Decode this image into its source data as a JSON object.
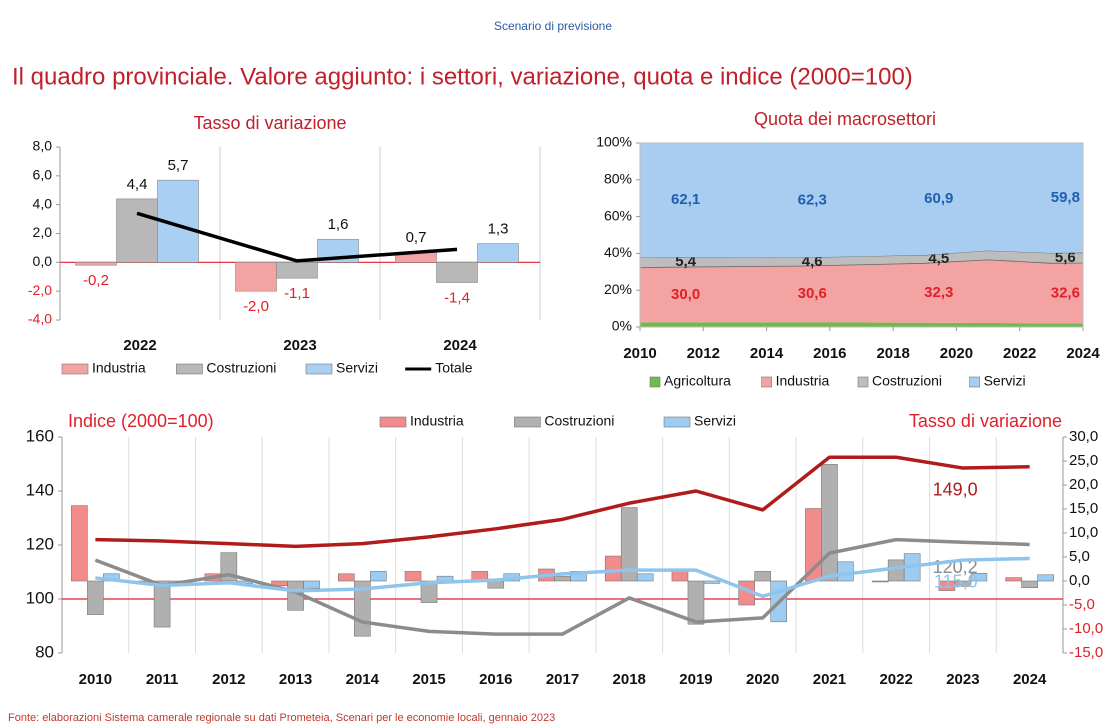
{
  "header": "Scenario di previsione",
  "title": "Il quadro provinciale. Valore aggiunto: i settori, variazione, quota e indice (2000=100)",
  "source": "Fonte: elaborazioni Sistema camerale regionale su dati Prometeia, Scenari per le economie locali, gennaio 2023",
  "chart_data": [
    {
      "type": "bar",
      "title": "Tasso di variazione",
      "categories": [
        "2022",
        "2023",
        "2024"
      ],
      "series": [
        {
          "name": "Industria",
          "color": "#f4a3a3",
          "values": [
            -0.2,
            -2.0,
            0.7
          ],
          "value_labels": [
            "-0,2",
            "-2,0",
            "0,7"
          ]
        },
        {
          "name": "Costruzioni",
          "color": "#b8b8b8",
          "values": [
            4.4,
            -1.1,
            -1.4
          ],
          "value_labels": [
            "4,4",
            "-1,1",
            "-1,4"
          ]
        },
        {
          "name": "Servizi",
          "color": "#a9d0f2",
          "values": [
            5.7,
            1.6,
            1.3
          ],
          "value_labels": [
            "5,7",
            "1,6",
            "1,3"
          ]
        },
        {
          "name": "Totale",
          "type": "line",
          "color": "#000000",
          "values": [
            3.4,
            0.1,
            0.9
          ]
        }
      ],
      "ylim": [
        -4,
        8
      ],
      "yticks": [
        {
          "value": -4,
          "label": "-4,0"
        },
        {
          "value": -2,
          "label": "-2,0"
        },
        {
          "value": 0,
          "label": "0,0"
        },
        {
          "value": 2,
          "label": "2,0"
        },
        {
          "value": 4,
          "label": "4,0"
        },
        {
          "value": 6,
          "label": "6,0"
        },
        {
          "value": 8,
          "label": "8,0"
        }
      ]
    },
    {
      "type": "area",
      "stacked": true,
      "title": "Quota dei macrosettori",
      "x": [
        2010,
        2011,
        2015,
        2019,
        2021,
        2023,
        2024
      ],
      "series": [
        {
          "name": "Agricoltura",
          "color": "#6dbb4c",
          "values": [
            2.5,
            2.5,
            2.5,
            2.3,
            2.2,
            2.0,
            2.0
          ]
        },
        {
          "name": "Industria",
          "color": "#f4a3a3",
          "label_color": "#e0202a",
          "values": [
            29.7,
            30.0,
            30.6,
            32.3,
            34.3,
            32.6,
            32.8
          ],
          "value_labels": [
            null,
            "30,0",
            "30,6",
            "32,3",
            null,
            "32,6",
            null
          ]
        },
        {
          "name": "Costruzioni",
          "color": "#bdbdbd",
          "label_color": "#222222",
          "values": [
            5.5,
            5.4,
            4.6,
            4.5,
            5.0,
            5.6,
            5.6
          ],
          "value_labels": [
            null,
            "5,4",
            "4,6",
            "4,5",
            null,
            "5,6",
            null
          ]
        },
        {
          "name": "Servizi",
          "color": "#a9cdf0",
          "label_color": "#1f5fb0",
          "values": [
            62.3,
            62.1,
            62.3,
            60.9,
            58.5,
            59.8,
            59.6
          ],
          "value_labels": [
            null,
            "62,1",
            "62,3",
            "60,9",
            null,
            "59,8",
            null
          ]
        }
      ],
      "xlim": [
        2010,
        2024
      ],
      "xticks": [
        2010,
        2012,
        2014,
        2016,
        2018,
        2020,
        2022,
        2024
      ],
      "ylim": [
        0,
        100
      ],
      "yticks": [
        {
          "value": 0,
          "label": "0%"
        },
        {
          "value": 20,
          "label": "20%"
        },
        {
          "value": 40,
          "label": "40%"
        },
        {
          "value": 60,
          "label": "60%"
        },
        {
          "value": 80,
          "label": "80%"
        },
        {
          "value": 100,
          "label": "100%"
        }
      ]
    },
    {
      "type": "combo",
      "annotations": [
        "Indice (2000=100)",
        "Tasso di variazione"
      ],
      "categories": [
        "2010",
        "2011",
        "2012",
        "2013",
        "2014",
        "2015",
        "2016",
        "2017",
        "2018",
        "2019",
        "2020",
        "2021",
        "2022",
        "2023",
        "2024"
      ],
      "reference_line": 100,
      "reference_color": "#e0202a",
      "series": [
        {
          "name": "Industria",
          "type": "bar",
          "axis": "y2",
          "color": "#f28b8b",
          "values": [
            15.7,
            -0.5,
            1.5,
            -1.0,
            1.5,
            2.0,
            2.0,
            2.5,
            5.2,
            2.5,
            -5.0,
            15.1,
            -0.2,
            -2.0,
            0.7
          ]
        },
        {
          "name": "Costruzioni",
          "type": "bar",
          "axis": "y2",
          "color": "#b0b0b0",
          "values": [
            -7.0,
            -9.6,
            5.9,
            -6.1,
            -11.5,
            -4.5,
            -1.5,
            1.0,
            15.3,
            -9.0,
            2.0,
            24.3,
            4.4,
            -1.1,
            -1.4
          ]
        },
        {
          "name": "Servizi",
          "type": "bar",
          "axis": "y2",
          "color": "#9ecbf0",
          "values": [
            1.5,
            -0.5,
            -0.5,
            -1.5,
            2.0,
            1.0,
            1.5,
            2.0,
            1.5,
            -0.5,
            -8.5,
            4.0,
            5.7,
            1.6,
            1.3
          ]
        },
        {
          "type": "line",
          "color": "#b01c1c",
          "values": [
            122,
            121.5,
            120.5,
            119.5,
            120.5,
            123,
            126,
            129.5,
            135.5,
            140,
            133,
            152.5,
            152.5,
            148.5,
            149.0
          ],
          "value_labels": [
            null,
            null,
            null,
            null,
            null,
            null,
            null,
            null,
            null,
            null,
            null,
            null,
            null,
            null,
            "149,0"
          ]
        },
        {
          "type": "line",
          "color": "#8c8c8c",
          "values": [
            114.4,
            105,
            109,
            102.6,
            91.5,
            88,
            87,
            87,
            100.4,
            91.5,
            93,
            117,
            122,
            121,
            120.2
          ],
          "value_labels": [
            null,
            null,
            null,
            null,
            null,
            null,
            null,
            null,
            null,
            null,
            null,
            null,
            null,
            null,
            "120,2"
          ]
        },
        {
          "type": "line",
          "color": "#8fc4ec",
          "values": [
            107.8,
            105,
            106,
            103,
            103.7,
            106,
            107,
            109.3,
            110.7,
            110.7,
            101,
            108.5,
            111.5,
            114.4,
            115.0
          ],
          "value_labels": [
            null,
            null,
            null,
            null,
            null,
            null,
            null,
            null,
            null,
            null,
            null,
            null,
            null,
            null,
            "115,0"
          ]
        }
      ],
      "ylim": [
        80,
        160
      ],
      "yticks": [
        80,
        100,
        120,
        140,
        160
      ],
      "y2lim": [
        -15,
        30
      ],
      "y2ticks": [
        {
          "value": -15,
          "label": "-15,0"
        },
        {
          "value": -10,
          "label": "-10,0"
        },
        {
          "value": -5,
          "label": "-5,0"
        },
        {
          "value": 0,
          "label": "0,0"
        },
        {
          "value": 5,
          "label": "5,0"
        },
        {
          "value": 10,
          "label": "10,0"
        },
        {
          "value": 15,
          "label": "15,0"
        },
        {
          "value": 20,
          "label": "20,0"
        },
        {
          "value": 25,
          "label": "25,0"
        },
        {
          "value": 30,
          "label": "30,0"
        }
      ]
    }
  ]
}
